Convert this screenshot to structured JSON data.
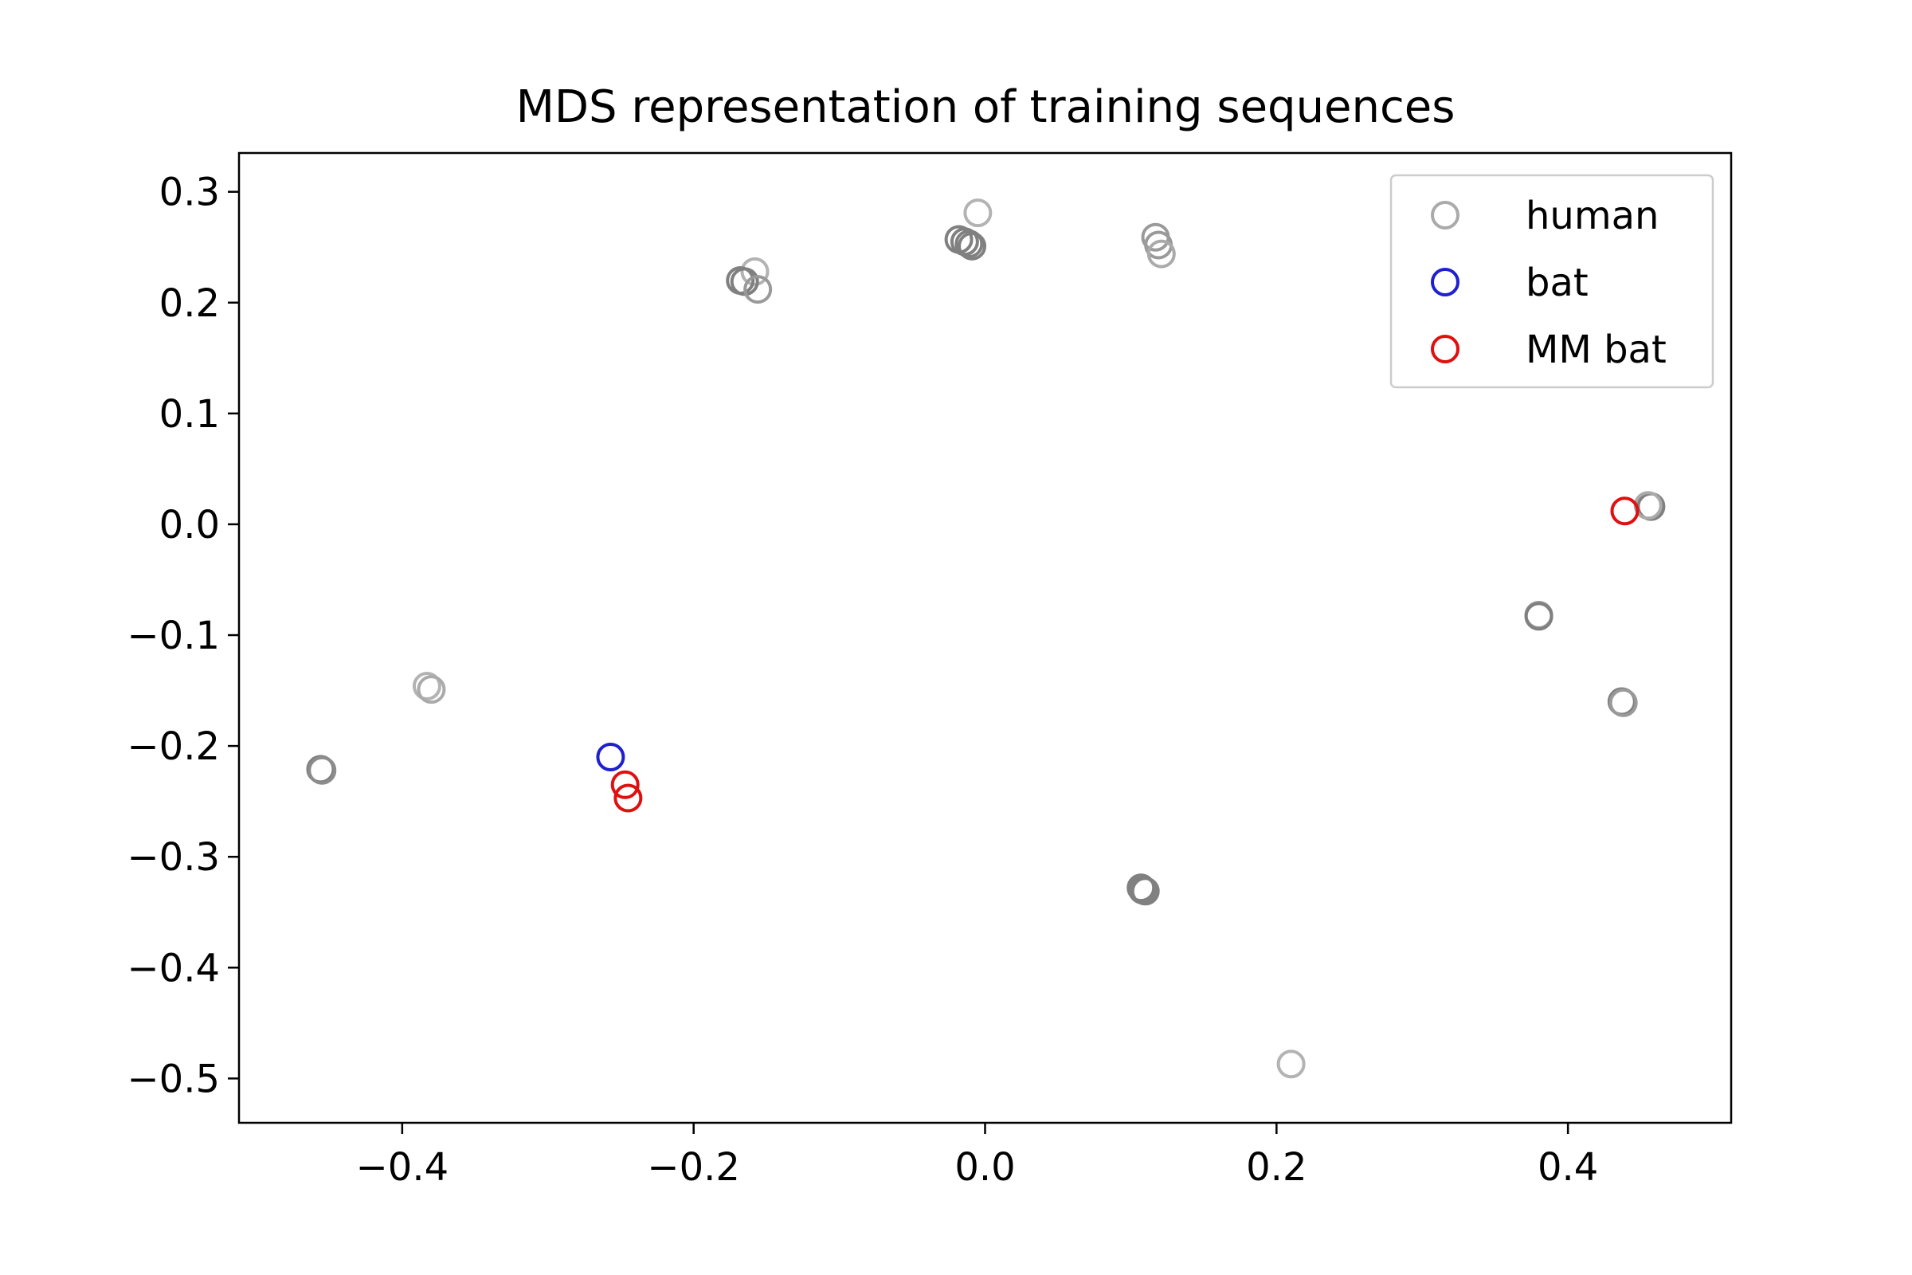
{
  "chart_data": {
    "type": "scatter",
    "title": "MDS representation of training sequences",
    "xlabel": "",
    "ylabel": "",
    "xlim": [
      -0.512,
      0.512
    ],
    "ylim": [
      -0.54,
      0.335
    ],
    "xticks": [
      -0.4,
      -0.2,
      0.0,
      0.2,
      0.4
    ],
    "xtick_labels": [
      "−0.4",
      "−0.2",
      "0.0",
      "0.2",
      "0.4"
    ],
    "yticks": [
      0.3,
      0.2,
      0.1,
      0.0,
      -0.1,
      -0.2,
      -0.3,
      -0.4,
      -0.5
    ],
    "ytick_labels": [
      "0.3",
      "0.2",
      "0.1",
      "0.0",
      "−0.1",
      "−0.2",
      "−0.3",
      "−0.4",
      "−0.5"
    ],
    "grid": false,
    "legend_position": "top-right",
    "marker": "hollow-circle",
    "series": [
      {
        "name": "human",
        "color": "#8c8c8c",
        "legend_color": "#aaaaaa",
        "points": [
          {
            "x": -0.005,
            "y": 0.281,
            "color": "#b3b3b3"
          },
          {
            "x": -0.018,
            "y": 0.257,
            "color": "#808080"
          },
          {
            "x": -0.014,
            "y": 0.255,
            "color": "#808080"
          },
          {
            "x": -0.011,
            "y": 0.253,
            "color": "#808080"
          },
          {
            "x": -0.009,
            "y": 0.251,
            "color": "#808080"
          },
          {
            "x": 0.117,
            "y": 0.259,
            "color": "#9a9a9a"
          },
          {
            "x": 0.119,
            "y": 0.252,
            "color": "#9a9a9a"
          },
          {
            "x": 0.121,
            "y": 0.244,
            "color": "#aaaaaa"
          },
          {
            "x": -0.158,
            "y": 0.228,
            "color": "#b3b3b3"
          },
          {
            "x": -0.168,
            "y": 0.22,
            "color": "#808080"
          },
          {
            "x": -0.165,
            "y": 0.219,
            "color": "#808080"
          },
          {
            "x": -0.156,
            "y": 0.212,
            "color": "#999999"
          },
          {
            "x": 0.457,
            "y": 0.016,
            "color": "#808080"
          },
          {
            "x": 0.455,
            "y": 0.017,
            "color": "#aaaaaa"
          },
          {
            "x": 0.38,
            "y": -0.082,
            "color": "#9a9a9a"
          },
          {
            "x": 0.38,
            "y": -0.083,
            "color": "#808080"
          },
          {
            "x": 0.437,
            "y": -0.16,
            "color": "#808080"
          },
          {
            "x": 0.438,
            "y": -0.161,
            "color": "#9a9a9a"
          },
          {
            "x": -0.383,
            "y": -0.146,
            "color": "#b3b3b3"
          },
          {
            "x": -0.38,
            "y": -0.149,
            "color": "#aaaaaa"
          },
          {
            "x": -0.456,
            "y": -0.221,
            "color": "#808080"
          },
          {
            "x": -0.455,
            "y": -0.222,
            "color": "#8c8c8c"
          },
          {
            "x": 0.107,
            "y": -0.328,
            "color": "#808080"
          },
          {
            "x": 0.11,
            "y": -0.331,
            "color": "#808080"
          },
          {
            "x": 0.108,
            "y": -0.33,
            "color": "#808080"
          },
          {
            "x": 0.21,
            "y": -0.487,
            "color": "#b3b3b3"
          }
        ]
      },
      {
        "name": "bat",
        "color": "#1f1fd0",
        "legend_color": "#1f1fd0",
        "points": [
          {
            "x": -0.257,
            "y": -0.21
          }
        ]
      },
      {
        "name": "MM bat",
        "color": "#e01010",
        "legend_color": "#e01010",
        "points": [
          {
            "x": -0.247,
            "y": -0.235
          },
          {
            "x": -0.245,
            "y": -0.247
          },
          {
            "x": 0.439,
            "y": 0.012
          }
        ]
      }
    ]
  }
}
